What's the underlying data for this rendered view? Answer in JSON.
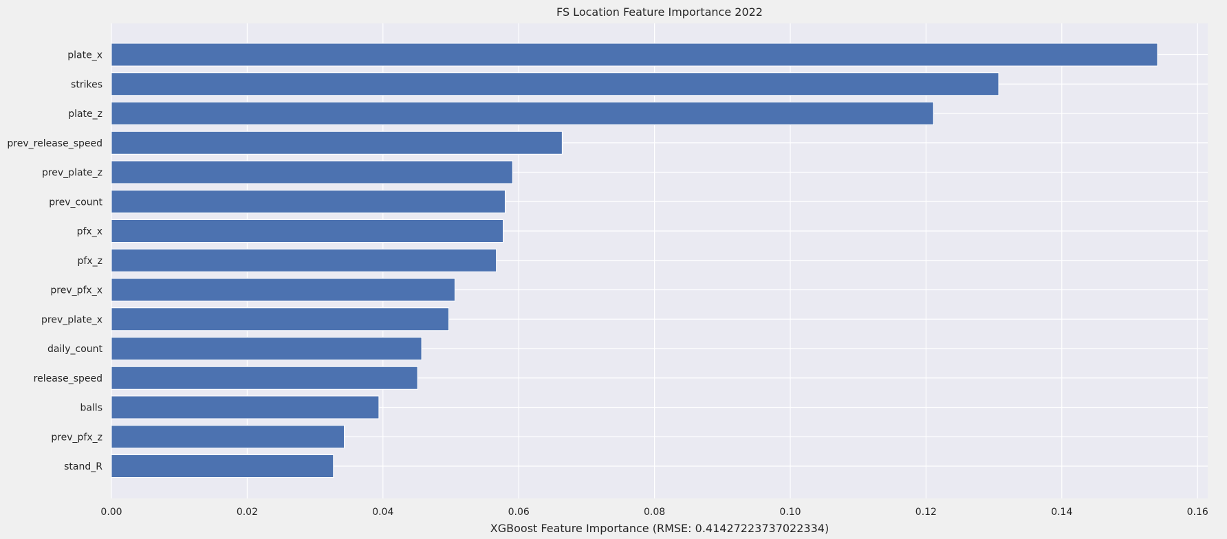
{
  "chart_data": {
    "type": "bar",
    "orientation": "horizontal",
    "title": "FS Location Feature Importance 2022",
    "xlabel": "XGBoost Feature Importance (RMSE: 0.41427223737022334)",
    "ylabel": "",
    "xlim": [
      0,
      0.1615
    ],
    "xticks": [
      0.0,
      0.02,
      0.04,
      0.06,
      0.08,
      0.1,
      0.12,
      0.14,
      0.16
    ],
    "xtick_labels": [
      "0.00",
      "0.02",
      "0.04",
      "0.06",
      "0.08",
      "0.10",
      "0.12",
      "0.14",
      "0.16"
    ],
    "grid": true,
    "bar_color": "#4c72b0",
    "background_color": "#eaeaf2",
    "categories": [
      "plate_x",
      "strikes",
      "plate_z",
      "prev_release_speed",
      "prev_plate_z",
      "prev_count",
      "pfx_x",
      "pfx_z",
      "prev_pfx_x",
      "prev_plate_x",
      "daily_count",
      "release_speed",
      "balls",
      "prev_pfx_z",
      "stand_R"
    ],
    "values": [
      0.1541,
      0.1307,
      0.1211,
      0.0664,
      0.0591,
      0.058,
      0.0577,
      0.0567,
      0.0506,
      0.0497,
      0.0457,
      0.0451,
      0.0394,
      0.0343,
      0.0327
    ]
  }
}
